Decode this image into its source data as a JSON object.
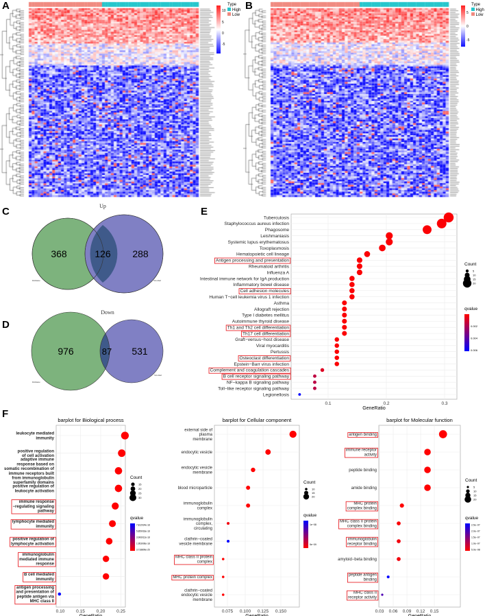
{
  "panels": {
    "A": "A",
    "B": "B",
    "C": "C",
    "D": "D",
    "E": "E",
    "F": "F"
  },
  "heatmap": {
    "type_legend_title": "Type",
    "type_high": "High",
    "type_low": "Low",
    "colors": {
      "high": "#26c6cc",
      "low": "#f08a80",
      "up": "#ff2020",
      "mid": "#ffffff",
      "down": "#1010ff"
    },
    "A_ticks": [
      "10",
      "5",
      "0",
      "-5"
    ],
    "B_ticks": [
      "5",
      "0",
      "-5"
    ]
  },
  "venn": {
    "up": {
      "title": "Up",
      "left_only": "368",
      "overlap": "126",
      "right_only": "288",
      "left_label": "Immune",
      "right_label": "Stromal"
    },
    "down": {
      "title": "Down",
      "left_only": "976",
      "overlap": "87",
      "right_only": "531",
      "left_label": "Immune",
      "right_label": "Stromal"
    },
    "colors": {
      "left": "#7db37d",
      "right": "#8080c4",
      "overlap": "#3f5a8a"
    }
  },
  "chart_data": [
    {
      "type": "scatter",
      "title": "",
      "xlabel": "GeneRatio",
      "xticks": [
        "0.1",
        "0.2",
        "0.3"
      ],
      "xtick_values": [
        0.1,
        0.2,
        0.3
      ],
      "xlim": [
        0.04,
        0.32
      ],
      "size_legend_title": "Count",
      "size_legend": [
        5,
        10,
        15,
        20
      ],
      "color_legend_title": "qvalue",
      "color_ticks": [
        "0.002",
        "0.004",
        "0.006"
      ],
      "qlim": [
        0.0,
        0.006
      ],
      "categories": [
        [
          "Tuberculosis"
        ],
        [
          "Staphylococcus aureus infection"
        ],
        [
          "Phagosome"
        ],
        [
          "Leishmaniasis"
        ],
        [
          "Systemic lupus erythematosus"
        ],
        [
          "Toxoplasmosis"
        ],
        [
          "Hematopoietic cell lineage"
        ],
        [
          "Antigen processing and presentation"
        ],
        [
          "Rheumatoid arthritis"
        ],
        [
          "Influenza A"
        ],
        [
          "Intestinal immune network for IgA production"
        ],
        [
          "Inflammatory bowel disease"
        ],
        [
          "Cell adhesion molecules"
        ],
        [
          "Human T−cell leukemia virus 1 infection"
        ],
        [
          "Asthma"
        ],
        [
          "Allograft rejection"
        ],
        [
          "Type I diabetes mellitus"
        ],
        [
          "Autoimmune thyroid disease"
        ],
        [
          "Th1 and Th2 cell differentiation"
        ],
        [
          "Th17 cell differentiation"
        ],
        [
          "Graft−versus−host disease"
        ],
        [
          "Viral myocarditis"
        ],
        [
          "Pertussis"
        ],
        [
          "Osteoclast differentiation"
        ],
        [
          "Epstein−Barr virus infection"
        ],
        [
          "Complement and coagulation cascades"
        ],
        [
          "B cell receptor signaling pathway"
        ],
        [
          "NF−kappa B signaling pathway"
        ],
        [
          "Toll−like receptor signaling pathway"
        ],
        [
          "Legionellosis"
        ]
      ],
      "gene_ratio": [
        0.307,
        0.295,
        0.27,
        0.205,
        0.205,
        0.193,
        0.167,
        0.154,
        0.154,
        0.154,
        0.141,
        0.141,
        0.141,
        0.141,
        0.128,
        0.128,
        0.128,
        0.128,
        0.128,
        0.128,
        0.115,
        0.115,
        0.115,
        0.115,
        0.115,
        0.09,
        0.077,
        0.077,
        0.077,
        0.051
      ],
      "count": [
        24,
        23,
        21,
        16,
        16,
        15,
        13,
        12,
        12,
        12,
        11,
        11,
        11,
        11,
        10,
        10,
        10,
        10,
        10,
        10,
        9,
        9,
        9,
        9,
        9,
        7,
        6,
        6,
        6,
        4
      ],
      "qvalue": [
        0.0001,
        0.0001,
        0.0001,
        0.0001,
        0.0001,
        0.0001,
        0.0001,
        0.0001,
        0.0001,
        0.0001,
        0.0001,
        0.0001,
        0.0001,
        0.0001,
        0.0001,
        0.0001,
        0.0001,
        0.0001,
        0.0001,
        0.0001,
        0.0001,
        0.0001,
        0.0001,
        0.0001,
        0.0001,
        0.0008,
        0.0015,
        0.0016,
        0.0016,
        0.006
      ],
      "highlighted": [
        7,
        12,
        18,
        19,
        23,
        25,
        26
      ]
    },
    {
      "type": "scatter",
      "title": "barplot for Biological process",
      "xlabel": "GeneRatio",
      "xticks": [
        "0.10",
        "0.15",
        "0.20",
        "0.25"
      ],
      "xtick_values": [
        0.1,
        0.15,
        0.2,
        0.25
      ],
      "size_legend_title": "Count",
      "size_legend": [
        15,
        20,
        25,
        30
      ],
      "color_legend_title": "qvalue",
      "color_ticks": [
        "7.812024e-18",
        "5.859018e-18",
        "3.906012e-18",
        "1.953006e-18",
        "3.718809e-25"
      ],
      "categories": [
        [
          "leukocyte mediated",
          "immunity"
        ],
        [
          "positive regulation",
          "of cell activation"
        ],
        [
          "adaptive immune",
          "response based on",
          "somatic recombination of",
          "immune receptors built",
          "from immunoglobulin",
          "superfamily domains"
        ],
        [
          "positive regulation of",
          "leukocyte activation"
        ],
        [
          "immune response",
          "−regulating signaling",
          "pathway"
        ],
        [
          "lymphocyte mediated",
          "immunity"
        ],
        [
          "positive regulation of",
          "lymphocyte activation"
        ],
        [
          "immunoglobulin",
          "mediated immune",
          "response"
        ],
        [
          "B cell mediated",
          "immunity"
        ],
        [
          "antigen processing",
          "and presentation of",
          "peptide antigen via",
          "MHC class II"
        ]
      ],
      "gene_ratio": [
        0.26,
        0.252,
        0.244,
        0.244,
        0.236,
        0.229,
        0.221,
        0.213,
        0.213,
        0.098
      ],
      "count": [
        34,
        33,
        32,
        32,
        31,
        30,
        29,
        28,
        28,
        13
      ],
      "qvalue_relative": [
        0,
        0,
        0,
        0,
        0,
        0,
        0,
        0,
        0,
        1
      ],
      "highlighted": [
        4,
        5,
        6,
        7,
        8,
        9
      ]
    },
    {
      "type": "scatter",
      "title": "barplot for Cellular component",
      "xlabel": "GeneRatio",
      "xticks": [
        "0.075",
        "0.100",
        "0.125",
        "0.150"
      ],
      "xtick_values": [
        0.075,
        0.1,
        0.125,
        0.15
      ],
      "size_legend_title": "Count",
      "size_legend": [
        10,
        15,
        20
      ],
      "color_legend_title": "qvalue",
      "color_ticks": [
        "1e−08",
        "5e−09"
      ],
      "categories": [
        [
          "external side of",
          "plasma",
          "membrane"
        ],
        [
          "endocytic vesicle"
        ],
        [
          "endocytic vesicle",
          "membrane"
        ],
        [
          "blood microparticle"
        ],
        [
          "immunoglobulin",
          "complex"
        ],
        [
          "immunoglobulin",
          "complex,",
          "circulating"
        ],
        [
          "clathrin−coated",
          "vesicle membrane"
        ],
        [
          "MHC class II protein",
          "complex"
        ],
        [
          "MHC protein complex"
        ],
        [
          "clathrin−coated",
          "endocytic vesicle",
          "membrane"
        ]
      ],
      "gene_ratio": [
        0.167,
        0.132,
        0.111,
        0.104,
        0.104,
        0.076,
        0.076,
        0.069,
        0.069,
        0.069
      ],
      "count": [
        24,
        19,
        16,
        15,
        15,
        11,
        11,
        10,
        10,
        10
      ],
      "qvalue_relative": [
        0,
        0,
        0,
        0,
        0,
        0.05,
        1,
        0,
        0,
        0
      ],
      "highlighted": [
        7,
        8
      ]
    },
    {
      "type": "scatter",
      "title": "barplot for Molecular function",
      "xlabel": "GeneRatio",
      "xticks": [
        "0.03",
        "0.06",
        "0.09",
        "0.12",
        "0.15"
      ],
      "xtick_values": [
        0.03,
        0.06,
        0.09,
        0.12,
        0.15
      ],
      "size_legend_title": "Count",
      "size_legend": [
        5,
        10,
        15,
        20
      ],
      "color_legend_title": "qvalue",
      "color_ticks": [
        "2.5e−07",
        "2.0e−07",
        "1.5e−07",
        "1.0e−07",
        "5.0e−08"
      ],
      "categories": [
        [
          "antigen binding"
        ],
        [
          "immune receptor",
          "activity"
        ],
        [
          "peptide binding"
        ],
        [
          "amide binding"
        ],
        [
          "MHC protein",
          "complex binding"
        ],
        [
          "MHC class II protein",
          "complex binding"
        ],
        [
          "immunoglobulin",
          "receptor binding"
        ],
        [
          "amyloid−beta binding"
        ],
        [
          "peptide antigen",
          "binding"
        ],
        [
          "MHC class II",
          "receptor activity"
        ]
      ],
      "gene_ratio": [
        0.169,
        0.135,
        0.135,
        0.135,
        0.079,
        0.072,
        0.072,
        0.072,
        0.049,
        0.036
      ],
      "count": [
        25,
        20,
        20,
        20,
        12,
        11,
        11,
        11,
        7,
        5
      ],
      "qvalue_relative": [
        0,
        0,
        0,
        0,
        0,
        0.02,
        0.05,
        0.05,
        1,
        0.7
      ],
      "highlighted": [
        0,
        1,
        4,
        5,
        6,
        8,
        9
      ]
    }
  ]
}
